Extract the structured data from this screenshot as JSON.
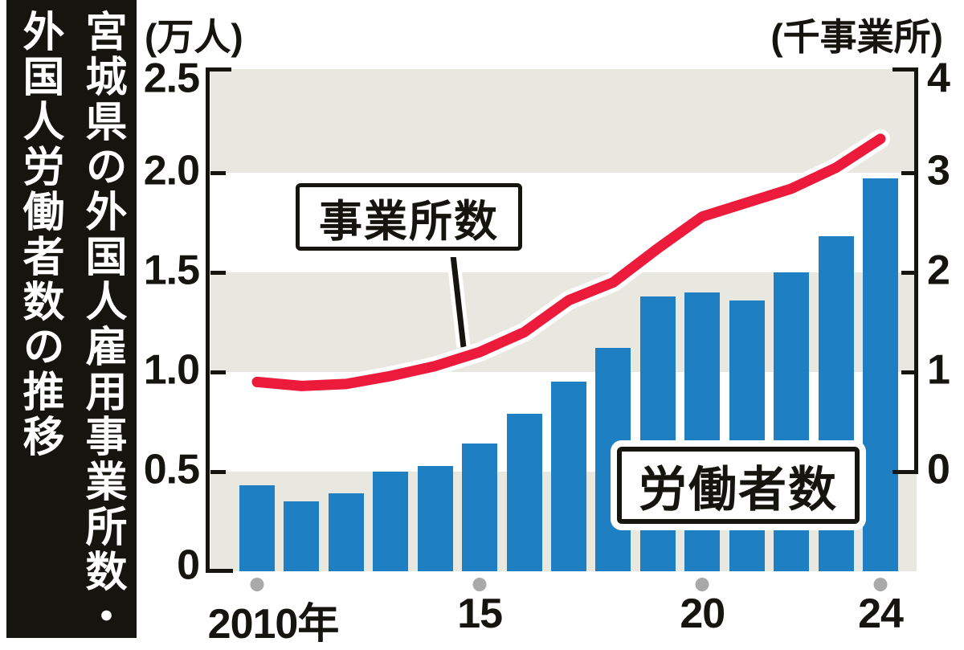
{
  "title": {
    "line1": "宮城県の外国人雇用事業所数・",
    "line2": "外国人労働者数の推移"
  },
  "left_axis": {
    "unit": "(万人)",
    "ticks": [
      "2.5",
      "2.0",
      "1.5",
      "1.0",
      "0.5",
      "0"
    ]
  },
  "right_axis": {
    "unit": "(千事業所)",
    "ticks": [
      "4",
      "3",
      "2",
      "1",
      "0"
    ]
  },
  "x_axis": {
    "labels": [
      {
        "text": "2010年",
        "year_index": 0
      },
      {
        "text": "15",
        "year_index": 5
      },
      {
        "text": "20",
        "year_index": 10
      },
      {
        "text": "24",
        "year_index": 14
      }
    ],
    "dot_year_indices": [
      0,
      5,
      10,
      14
    ]
  },
  "series_labels": {
    "line": "事業所数",
    "bar": "労働者数"
  },
  "chart_data": {
    "type": "bar+line",
    "x": [
      2010,
      2011,
      2012,
      2013,
      2014,
      2015,
      2016,
      2017,
      2018,
      2019,
      2020,
      2021,
      2022,
      2023,
      2024
    ],
    "series": [
      {
        "name": "労働者数",
        "type": "bar",
        "axis": "left",
        "unit": "万人",
        "values": [
          0.43,
          0.35,
          0.39,
          0.5,
          0.53,
          0.64,
          0.79,
          0.95,
          1.12,
          1.38,
          1.4,
          1.36,
          1.5,
          1.68,
          1.97
        ]
      },
      {
        "name": "事業所数",
        "type": "line",
        "axis": "right",
        "unit": "千事業所",
        "values": [
          0.9,
          0.86,
          0.88,
          0.96,
          1.06,
          1.2,
          1.4,
          1.72,
          1.9,
          2.24,
          2.56,
          2.7,
          2.84,
          3.05,
          3.34
        ]
      }
    ],
    "left_ylim": [
      0,
      2.5
    ],
    "right_ylim": [
      0,
      4
    ],
    "right_axis_zero_aligned_with_left": 0.5,
    "grid": "alternating horizontal bands",
    "band_color": "#e9e8e0",
    "colors": {
      "bar": "#1e80c3",
      "line": "#ec1a3b",
      "dot": "#a9a9a9",
      "banner": "#16140e"
    }
  }
}
